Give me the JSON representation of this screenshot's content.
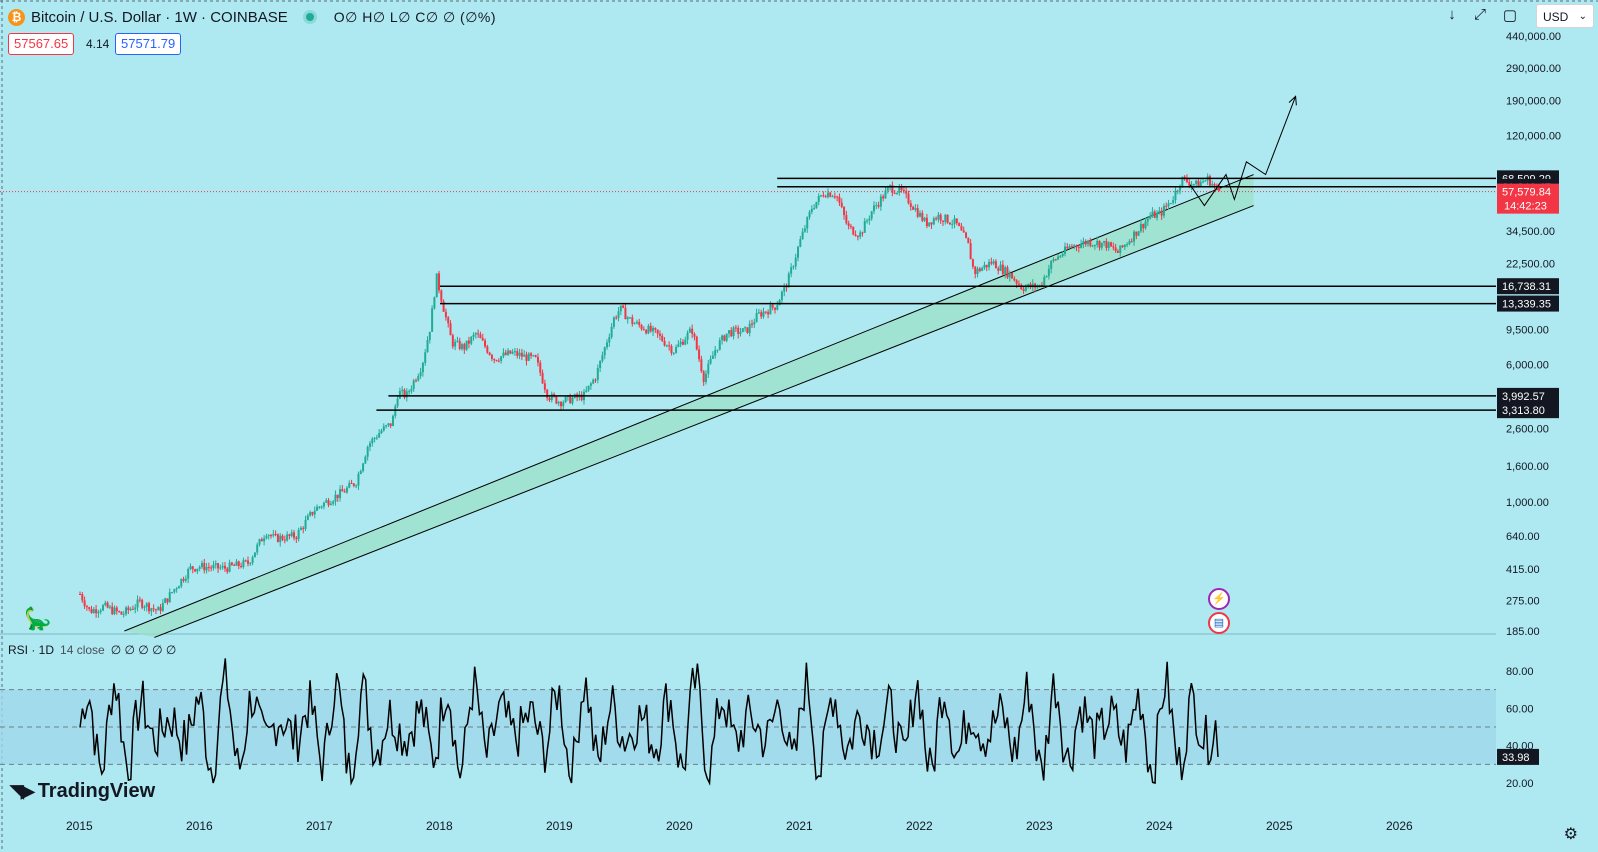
{
  "header": {
    "symbol": "Bitcoin / U.S. Dollar · 1W · COINBASE",
    "ohlc": "O∅ H∅ L∅ C∅ ∅ (∅%)",
    "sell_price": "57567.65",
    "spread": "4.14",
    "buy_price": "57571.79"
  },
  "toolbar": {
    "currency": "USD",
    "download_icon": "arrow-down-icon",
    "fullscreen_icon": "expand-icon",
    "screenshot_icon": "frame-icon"
  },
  "rsi": {
    "label": "RSI · 1D",
    "params": "14 close",
    "values": "∅ ∅ ∅ ∅ ∅",
    "current": "33.98"
  },
  "brand": {
    "name": "TradingView"
  },
  "colors": {
    "background": "#aee9f1",
    "up": "#22ab94",
    "down": "#f23645",
    "channel_fill": "#9be0c7",
    "rsi_band": "#9fd7ea",
    "line": "#000000"
  },
  "chart_data": [
    {
      "type": "candlestick",
      "title": "Bitcoin / U.S. Dollar · 1W · COINBASE",
      "scale": "log",
      "x_tick_labels": [
        "2015",
        "2016",
        "2017",
        "2018",
        "2019",
        "2020",
        "2021",
        "2022",
        "2023",
        "2024",
        "2025",
        "2026"
      ],
      "y_tick_labels": [
        "440,000.00",
        "290,000.00",
        "190,000.00",
        "120,000.00",
        "34,500.00",
        "22,500.00",
        "9,500.00",
        "6,000.00",
        "2,600.00",
        "1,600.00",
        "1,000.00",
        "640.00",
        "415.00",
        "275.00",
        "185.00"
      ],
      "ylim": [
        170,
        500000
      ],
      "horizontal_levels": [
        {
          "price": 68509.29,
          "label": "68,509.29",
          "start": 2020.81
        },
        {
          "price": 61346.47,
          "label": "61,346.47",
          "start": 2020.81
        },
        {
          "price": 16738.31,
          "label": "16,738.31",
          "start": 2018.0
        },
        {
          "price": 13339.35,
          "label": "13,339.35",
          "start": 2018.0
        },
        {
          "price": 3992.57,
          "label": "3,992.57",
          "start": 2017.57
        },
        {
          "price": 3313.8,
          "label": "3,313.80",
          "start": 2017.47
        }
      ],
      "last_price": {
        "price": 57579.84,
        "label": "57,579.84",
        "countdown": "14:42:23"
      },
      "channel": {
        "upper": [
          [
            2015.37,
            185
          ],
          [
            2024.78,
            72000
          ]
        ],
        "lower": [
          [
            2015.62,
            170
          ],
          [
            2024.78,
            48000
          ]
        ]
      },
      "projection_path": [
        [
          2024.25,
          63000
        ],
        [
          2024.37,
          48000
        ],
        [
          2024.55,
          72000
        ],
        [
          2024.62,
          52000
        ],
        [
          2024.72,
          85000
        ],
        [
          2024.88,
          72000
        ],
        [
          2025.13,
          200000
        ]
      ],
      "price_path": [
        [
          2015.0,
          300
        ],
        [
          2015.08,
          240
        ],
        [
          2015.2,
          255
        ],
        [
          2015.35,
          230
        ],
        [
          2015.5,
          270
        ],
        [
          2015.65,
          240
        ],
        [
          2015.8,
          330
        ],
        [
          2015.92,
          420
        ],
        [
          2016.0,
          430
        ],
        [
          2016.2,
          420
        ],
        [
          2016.4,
          450
        ],
        [
          2016.55,
          680
        ],
        [
          2016.62,
          620
        ],
        [
          2016.8,
          640
        ],
        [
          2016.95,
          900
        ],
        [
          2017.05,
          1000
        ],
        [
          2017.2,
          1150
        ],
        [
          2017.3,
          1300
        ],
        [
          2017.4,
          2100
        ],
        [
          2017.5,
          2500
        ],
        [
          2017.6,
          2800
        ],
        [
          2017.65,
          4200
        ],
        [
          2017.72,
          4000
        ],
        [
          2017.85,
          6000
        ],
        [
          2017.92,
          10000
        ],
        [
          2017.97,
          19000
        ],
        [
          2018.05,
          11000
        ],
        [
          2018.1,
          8000
        ],
        [
          2018.2,
          7500
        ],
        [
          2018.3,
          9000
        ],
        [
          2018.45,
          6500
        ],
        [
          2018.6,
          7000
        ],
        [
          2018.8,
          6400
        ],
        [
          2018.9,
          4000
        ],
        [
          2019.0,
          3700
        ],
        [
          2019.2,
          4000
        ],
        [
          2019.3,
          5200
        ],
        [
          2019.45,
          11000
        ],
        [
          2019.5,
          12500
        ],
        [
          2019.6,
          10500
        ],
        [
          2019.8,
          9000
        ],
        [
          2019.95,
          7200
        ],
        [
          2020.1,
          9500
        ],
        [
          2020.2,
          5000
        ],
        [
          2020.3,
          7500
        ],
        [
          2020.4,
          9200
        ],
        [
          2020.55,
          9300
        ],
        [
          2020.65,
          11500
        ],
        [
          2020.8,
          13000
        ],
        [
          2020.9,
          18000
        ],
        [
          2021.0,
          30000
        ],
        [
          2021.1,
          47000
        ],
        [
          2021.2,
          57000
        ],
        [
          2021.3,
          56000
        ],
        [
          2021.4,
          36000
        ],
        [
          2021.5,
          33000
        ],
        [
          2021.6,
          45000
        ],
        [
          2021.75,
          61000
        ],
        [
          2021.85,
          57000
        ],
        [
          2021.95,
          47000
        ],
        [
          2022.05,
          38000
        ],
        [
          2022.15,
          42000
        ],
        [
          2022.3,
          38000
        ],
        [
          2022.4,
          29000
        ],
        [
          2022.45,
          20000
        ],
        [
          2022.6,
          23000
        ],
        [
          2022.75,
          19500
        ],
        [
          2022.85,
          16500
        ],
        [
          2023.0,
          16800
        ],
        [
          2023.1,
          23000
        ],
        [
          2023.25,
          28000
        ],
        [
          2023.4,
          30000
        ],
        [
          2023.55,
          29000
        ],
        [
          2023.65,
          26000
        ],
        [
          2023.8,
          34000
        ],
        [
          2023.92,
          42000
        ],
        [
          2024.0,
          43000
        ],
        [
          2024.1,
          52000
        ],
        [
          2024.18,
          68000
        ],
        [
          2024.3,
          63000
        ],
        [
          2024.4,
          68000
        ],
        [
          2024.45,
          62000
        ],
        [
          2024.5,
          57579
        ]
      ]
    },
    {
      "type": "line",
      "title": "RSI · 1D 14 close",
      "y_tick_labels": [
        "80.00",
        "60.00",
        "40.00",
        "20.00"
      ],
      "ylim": [
        10,
        95
      ],
      "band": [
        30,
        70
      ],
      "midline": 50,
      "current_value": 33.98
    }
  ]
}
